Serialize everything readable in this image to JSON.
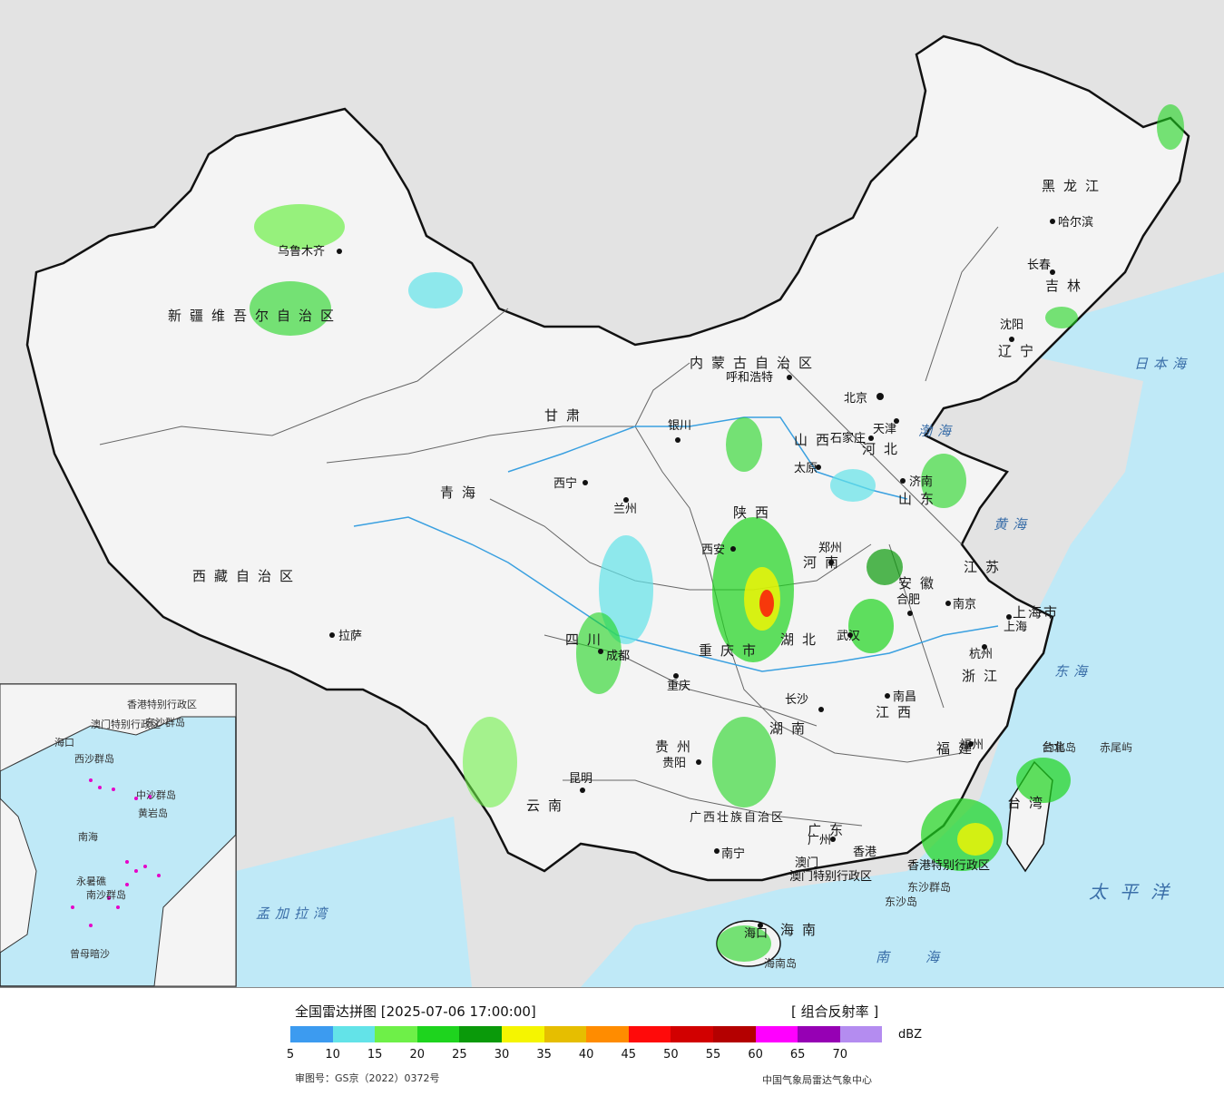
{
  "map": {
    "provinces": [
      {
        "name": "新疆维吾尔自治区"
      },
      {
        "name": "西藏自治区"
      },
      {
        "name": "青海"
      },
      {
        "name": "甘肃"
      },
      {
        "name": "内蒙古自治区"
      },
      {
        "name": "黑龙江"
      },
      {
        "name": "吉林"
      },
      {
        "name": "辽宁"
      },
      {
        "name": "河北"
      },
      {
        "name": "山西"
      },
      {
        "name": "陕西"
      },
      {
        "name": "河南"
      },
      {
        "name": "山东"
      },
      {
        "name": "江苏"
      },
      {
        "name": "安徽"
      },
      {
        "name": "湖北"
      },
      {
        "name": "四川"
      },
      {
        "name": "重庆市"
      },
      {
        "name": "贵州"
      },
      {
        "name": "云南"
      },
      {
        "name": "湖南"
      },
      {
        "name": "江西"
      },
      {
        "name": "浙江"
      },
      {
        "name": "福建"
      },
      {
        "name": "广东"
      },
      {
        "name": "广西壮族自治区"
      },
      {
        "name": "海南"
      },
      {
        "name": "台湾"
      },
      {
        "name": "上海市"
      }
    ],
    "cities": [
      {
        "name": "乌鲁木齐"
      },
      {
        "name": "拉萨"
      },
      {
        "name": "西宁"
      },
      {
        "name": "兰州"
      },
      {
        "name": "银川"
      },
      {
        "name": "呼和浩特"
      },
      {
        "name": "北京"
      },
      {
        "name": "天津"
      },
      {
        "name": "石家庄"
      },
      {
        "name": "太原"
      },
      {
        "name": "济南"
      },
      {
        "name": "西安"
      },
      {
        "name": "郑州"
      },
      {
        "name": "合肥"
      },
      {
        "name": "南京"
      },
      {
        "name": "上海"
      },
      {
        "name": "杭州"
      },
      {
        "name": "武汉"
      },
      {
        "name": "成都"
      },
      {
        "name": "重庆"
      },
      {
        "name": "贵阳"
      },
      {
        "name": "昆明"
      },
      {
        "name": "长沙"
      },
      {
        "name": "南昌"
      },
      {
        "name": "福州"
      },
      {
        "name": "广州"
      },
      {
        "name": "南宁"
      },
      {
        "name": "海口"
      },
      {
        "name": "哈尔滨"
      },
      {
        "name": "长春"
      },
      {
        "name": "沈阳"
      },
      {
        "name": "香港"
      },
      {
        "name": "澳门"
      },
      {
        "name": "台北"
      }
    ],
    "seas": [
      {
        "name": "日本海"
      },
      {
        "name": "渤海"
      },
      {
        "name": "黄海"
      },
      {
        "name": "东海"
      },
      {
        "name": "南海"
      },
      {
        "name": "太平洋"
      },
      {
        "name": "孟加拉湾"
      }
    ],
    "islands": [
      {
        "name": "钓鱼岛"
      },
      {
        "name": "赤尾屿"
      },
      {
        "name": "东沙群岛"
      },
      {
        "name": "东沙岛"
      },
      {
        "name": "海南岛"
      }
    ],
    "special_regions": [
      {
        "name": "香港特别行政区"
      },
      {
        "name": "澳门特别行政区"
      }
    ],
    "inset": {
      "labels": [
        "南海",
        "西沙群岛",
        "中沙群岛",
        "南沙群岛",
        "黄岩岛",
        "永暑礁",
        "曾母暗沙",
        "东沙群岛",
        "香港特别行政区",
        "澳门特别行政区",
        "海口"
      ]
    }
  },
  "legend": {
    "title": "全国雷达拼图 [2025-07-06 17:00:00]",
    "product": "[ 组合反射率 ]",
    "unit": "dBZ",
    "ticks": [
      "5",
      "10",
      "15",
      "20",
      "25",
      "30",
      "35",
      "40",
      "45",
      "50",
      "55",
      "60",
      "65",
      "70"
    ],
    "colors": [
      "#3c9bf0",
      "#63e3e8",
      "#6ef048",
      "#1ed41e",
      "#0a9a0a",
      "#f5f500",
      "#e6be00",
      "#ff8c00",
      "#ff0a0a",
      "#d20000",
      "#b40000",
      "#ff00ff",
      "#9600b4",
      "#b48cf0"
    ],
    "review_no": "审图号：GS京（2022）0372号",
    "source": "中国气象局雷达气象中心"
  }
}
